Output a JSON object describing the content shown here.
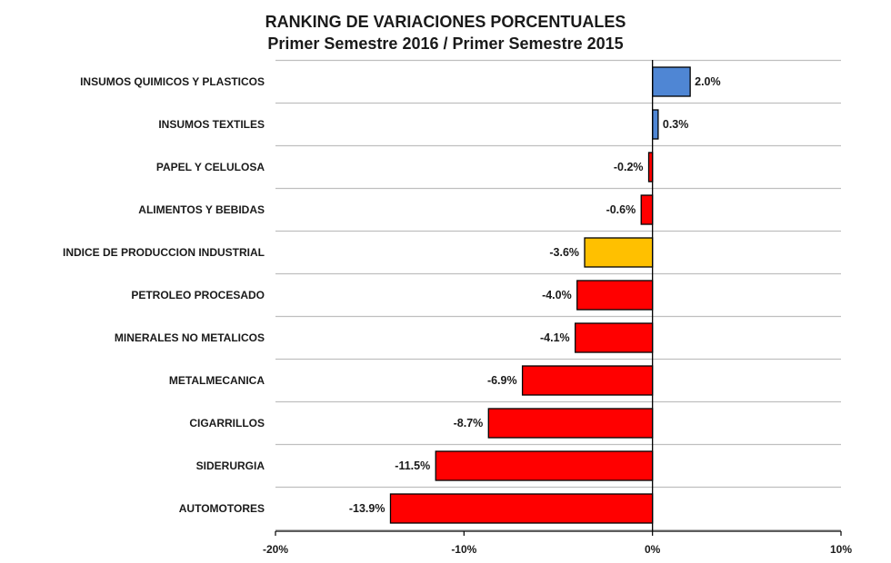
{
  "chart_data": {
    "type": "bar",
    "orientation": "horizontal",
    "title": "RANKING DE VARIACIONES PORCENTUALES",
    "subtitle": "Primer Semestre 2016 / Primer Semestre 2015",
    "xlabel": "",
    "ylabel": "",
    "xlim": [
      -20,
      10
    ],
    "x_ticks": [
      -20,
      -10,
      0,
      10
    ],
    "x_tick_labels": [
      "-20%",
      "-10%",
      "0%",
      "10%"
    ],
    "grid": "horizontal",
    "legend": "none",
    "categories": [
      "INSUMOS QUIMICOS Y PLASTICOS",
      "INSUMOS TEXTILES",
      "PAPEL Y CELULOSA",
      "ALIMENTOS Y BEBIDAS",
      "INDICE DE PRODUCCION INDUSTRIAL",
      "PETROLEO PROCESADO",
      "MINERALES NO METALICOS",
      "METALMECANICA",
      "CIGARRILLOS",
      "SIDERURGIA",
      "AUTOMOTORES"
    ],
    "values": [
      2.0,
      0.3,
      -0.2,
      -0.6,
      -3.6,
      -4.0,
      -4.1,
      -6.9,
      -8.7,
      -11.5,
      -13.9
    ],
    "value_labels": [
      "2.0%",
      "0.3%",
      "-0.2%",
      "-0.6%",
      "-3.6%",
      "-4.0%",
      "-4.1%",
      "-6.9%",
      "-8.7%",
      "-11.5%",
      "-13.9%"
    ],
    "bar_colors": [
      "#4f86d4",
      "#4f86d4",
      "#ff0000",
      "#ff0000",
      "#ffc000",
      "#ff0000",
      "#ff0000",
      "#ff0000",
      "#ff0000",
      "#ff0000",
      "#ff0000"
    ],
    "colors": {
      "positive": "#4f86d4",
      "negative": "#ff0000",
      "index_highlight": "#ffc000",
      "gridline": "#bfbfbf",
      "axis": "#000000",
      "bar_outline": "#000000"
    }
  }
}
